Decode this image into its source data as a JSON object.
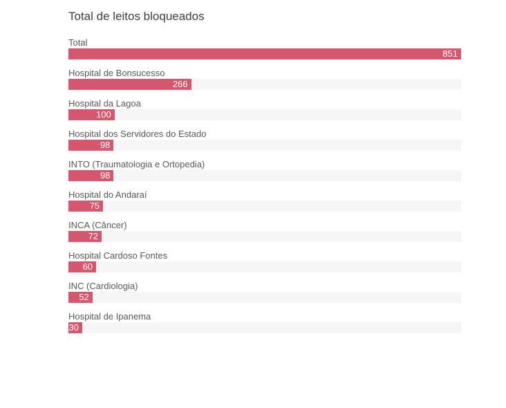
{
  "title": "Total de leitos bloqueados",
  "colors": {
    "bar": "#d5576e",
    "track": "#f5f5f5",
    "title_text": "#3e3e3e",
    "label_text": "#585858",
    "value_text": "#ffffff",
    "background": "#ffffff"
  },
  "chart_data": {
    "type": "bar",
    "orientation": "horizontal",
    "title": "Total de leitos bloqueados",
    "categories": [
      "Total",
      "Hospital de Bonsucesso",
      "Hospital da Lagoa",
      "Hospital dos Servidores do Estado",
      "INTO (Traumatologia e Ortopedia)",
      "Hospital do Andaraí",
      "INCA (Câncer)",
      "Hospital Cardoso Fontes",
      "INC (Cardiologia)",
      "Hospital de Ipanema"
    ],
    "values": [
      851,
      266,
      100,
      98,
      98,
      75,
      72,
      60,
      52,
      30
    ],
    "xlim": [
      0,
      851
    ],
    "xlabel": "",
    "ylabel": "",
    "grid": false,
    "legend": false,
    "value_label_position": "inside-end"
  }
}
